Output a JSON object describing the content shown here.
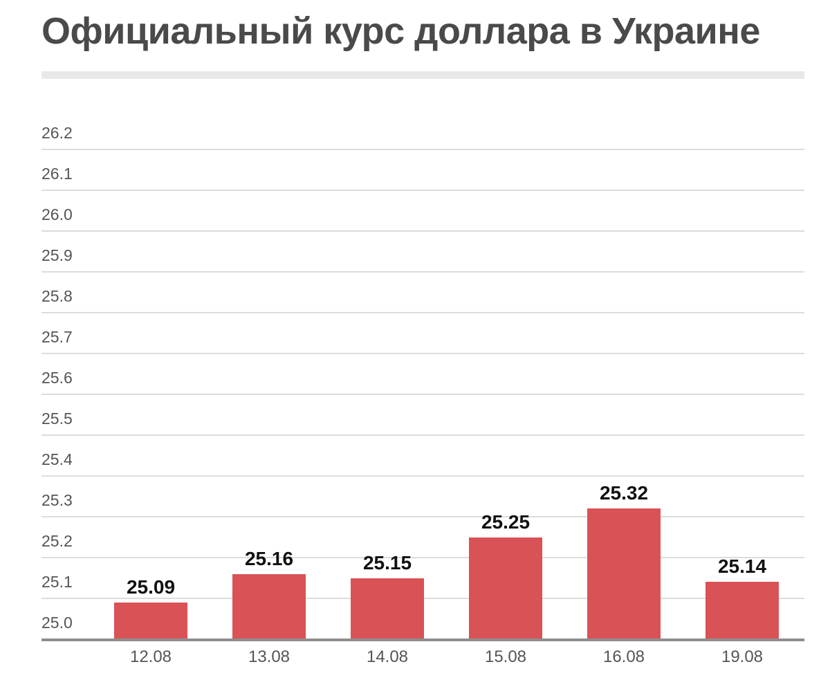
{
  "title": "Официальный курс доллара в Украине",
  "colors": {
    "bar": "#d95256",
    "gridline": "#dcdcdc",
    "baseline": "#8e8e8e",
    "title": "#4a4a4a"
  },
  "chart_data": {
    "type": "bar",
    "title": "Официальный курс доллара в Украине",
    "xlabel": "",
    "ylabel": "",
    "categories": [
      "12.08",
      "13.08",
      "14.08",
      "15.08",
      "16.08",
      "19.08"
    ],
    "values": [
      25.09,
      25.16,
      25.15,
      25.25,
      25.32,
      25.14
    ],
    "value_labels": [
      "25.09",
      "25.16",
      "25.15",
      "25.25",
      "25.32",
      "25.14"
    ],
    "yticks": [
      "25.0",
      "25.1",
      "25.2",
      "25.3",
      "25.4",
      "25.5",
      "25.6",
      "25.7",
      "25.8",
      "25.9",
      "26.0",
      "26.1",
      "26.2"
    ],
    "ylim": [
      25.0,
      26.2
    ],
    "grid": true,
    "legend": null,
    "bar_color": "#d95256"
  }
}
